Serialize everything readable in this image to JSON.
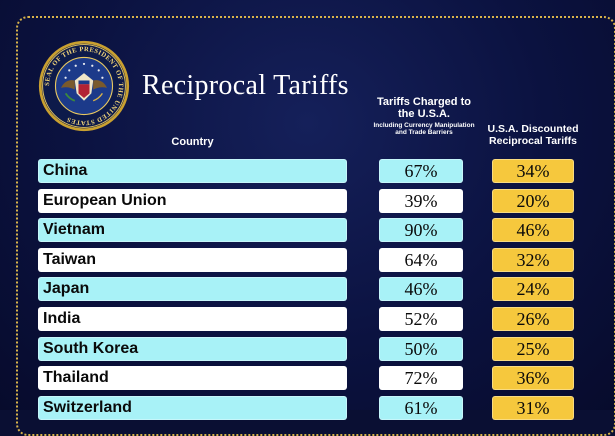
{
  "title": "Reciprocal Tariffs",
  "seal": {
    "text": "SEAL OF THE PRESIDENT OF THE UNITED STATES"
  },
  "headers": {
    "country": "Country",
    "charged_main": "Tariffs Charged to the U.S.A.",
    "charged_sub": "Including Currency Manipulation and Trade Barriers",
    "discounted": "U.S.A. Discounted Reciprocal Tariffs"
  },
  "colors": {
    "background": "#0b1240",
    "border_dots": "#d8b34a",
    "row_cyan": "#a8f2f7",
    "row_white": "#ffffff",
    "discount_gold": "#f6c83d"
  },
  "rows": [
    {
      "country": "China",
      "charged": "67%",
      "discounted": "34%",
      "style": "cyan"
    },
    {
      "country": "European Union",
      "charged": "39%",
      "discounted": "20%",
      "style": "white"
    },
    {
      "country": "Vietnam",
      "charged": "90%",
      "discounted": "46%",
      "style": "cyan"
    },
    {
      "country": "Taiwan",
      "charged": "64%",
      "discounted": "32%",
      "style": "white"
    },
    {
      "country": "Japan",
      "charged": "46%",
      "discounted": "24%",
      "style": "cyan"
    },
    {
      "country": "India",
      "charged": "52%",
      "discounted": "26%",
      "style": "white"
    },
    {
      "country": "South Korea",
      "charged": "50%",
      "discounted": "25%",
      "style": "cyan"
    },
    {
      "country": "Thailand",
      "charged": "72%",
      "discounted": "36%",
      "style": "white"
    },
    {
      "country": "Switzerland",
      "charged": "61%",
      "discounted": "31%",
      "style": "cyan"
    }
  ]
}
